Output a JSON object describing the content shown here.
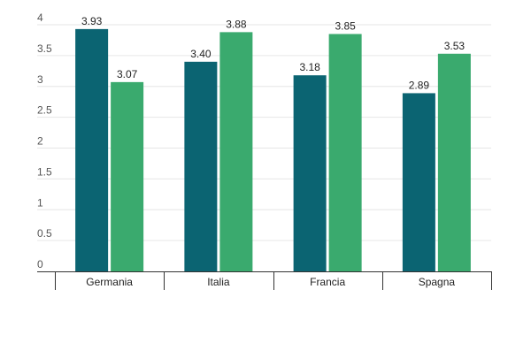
{
  "chart_data": {
    "type": "bar",
    "categories": [
      "Germania",
      "Italia",
      "Francia",
      "Spagna"
    ],
    "series": [
      {
        "values": [
          3.93,
          3.4,
          3.18,
          2.89
        ],
        "color": "#0b6472"
      },
      {
        "values": [
          3.07,
          3.88,
          3.85,
          3.53
        ],
        "color": "#3aaa6e"
      }
    ],
    "value_labels": [
      [
        "3.93",
        "3.40",
        "3.18",
        "2.89"
      ],
      [
        "3.07",
        "3.88",
        "3.85",
        "3.53"
      ]
    ],
    "yticks": [
      "0",
      "0.5",
      "1",
      "1.5",
      "2",
      "2.5",
      "3",
      "3.5",
      "4"
    ],
    "ylim": [
      0,
      4
    ],
    "grid": true,
    "title": "",
    "xlabel": "",
    "ylabel": ""
  }
}
